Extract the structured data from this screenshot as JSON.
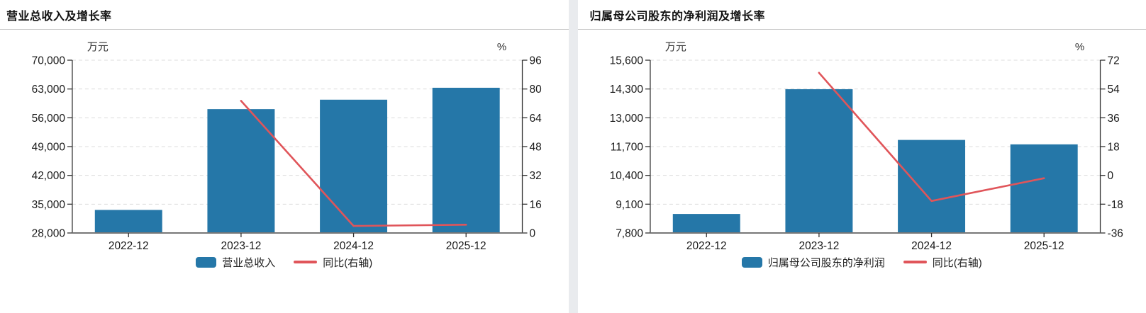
{
  "panels": [
    {
      "title": "营业总收入及增长率",
      "legend": [
        {
          "label": "营业总收入",
          "type": "bar"
        },
        {
          "label": "同比(右轴)",
          "type": "line"
        }
      ]
    },
    {
      "title": "归属母公司股东的净利润及增长率",
      "legend": [
        {
          "label": "归属母公司股东的净利润",
          "type": "bar"
        },
        {
          "label": "同比(右轴)",
          "type": "line"
        }
      ]
    }
  ],
  "chart_data": [
    {
      "type": "bar+line",
      "title": "营业总收入及增长率",
      "categories": [
        "2022-12",
        "2023-12",
        "2024-12",
        "2025-12"
      ],
      "series": [
        {
          "name": "营业总收入",
          "type": "bar",
          "axis": "left",
          "values": [
            33600,
            58100,
            60400,
            63300
          ]
        },
        {
          "name": "同比(右轴)",
          "type": "line",
          "axis": "right",
          "values": [
            null,
            73.4,
            3.9,
            4.6
          ]
        }
      ],
      "left_axis": {
        "unit": "万元",
        "min": 28000,
        "max": 70000,
        "ticks": [
          "70,000",
          "63,000",
          "56,000",
          "49,000",
          "42,000",
          "35,000",
          "28,000"
        ]
      },
      "right_axis": {
        "unit": "%",
        "min": 0,
        "max": 96,
        "ticks": [
          "96",
          "80",
          "64",
          "48",
          "32",
          "16",
          "0"
        ]
      },
      "grid": "dashed",
      "legend_position": "bottom"
    },
    {
      "type": "bar+line",
      "title": "归属母公司股东的净利润及增长率",
      "categories": [
        "2022-12",
        "2023-12",
        "2024-12",
        "2025-12"
      ],
      "series": [
        {
          "name": "归属母公司股东的净利润",
          "type": "bar",
          "axis": "left",
          "values": [
            8660,
            14290,
            12000,
            11800
          ]
        },
        {
          "name": "同比(右轴)",
          "type": "line",
          "axis": "right",
          "values": [
            null,
            64.1,
            -16.0,
            -1.8
          ]
        }
      ],
      "left_axis": {
        "unit": "万元",
        "min": 7800,
        "max": 15600,
        "ticks": [
          "15,600",
          "14,300",
          "13,000",
          "11,700",
          "10,400",
          "9,100",
          "7,800"
        ]
      },
      "right_axis": {
        "unit": "%",
        "min": -36,
        "max": 72,
        "ticks": [
          "72",
          "54",
          "36",
          "18",
          "0",
          "-18",
          "-36"
        ]
      },
      "grid": "dashed",
      "legend_position": "bottom"
    }
  ],
  "colors": {
    "bar": "#2577a8",
    "line": "#e0555a",
    "grid": "#dcdcdc",
    "axis": "#555555",
    "tick_text": "#1a1a1a",
    "divider": "#e9ebee",
    "title_rule": "#c9c9c9",
    "background": "#ffffff"
  }
}
